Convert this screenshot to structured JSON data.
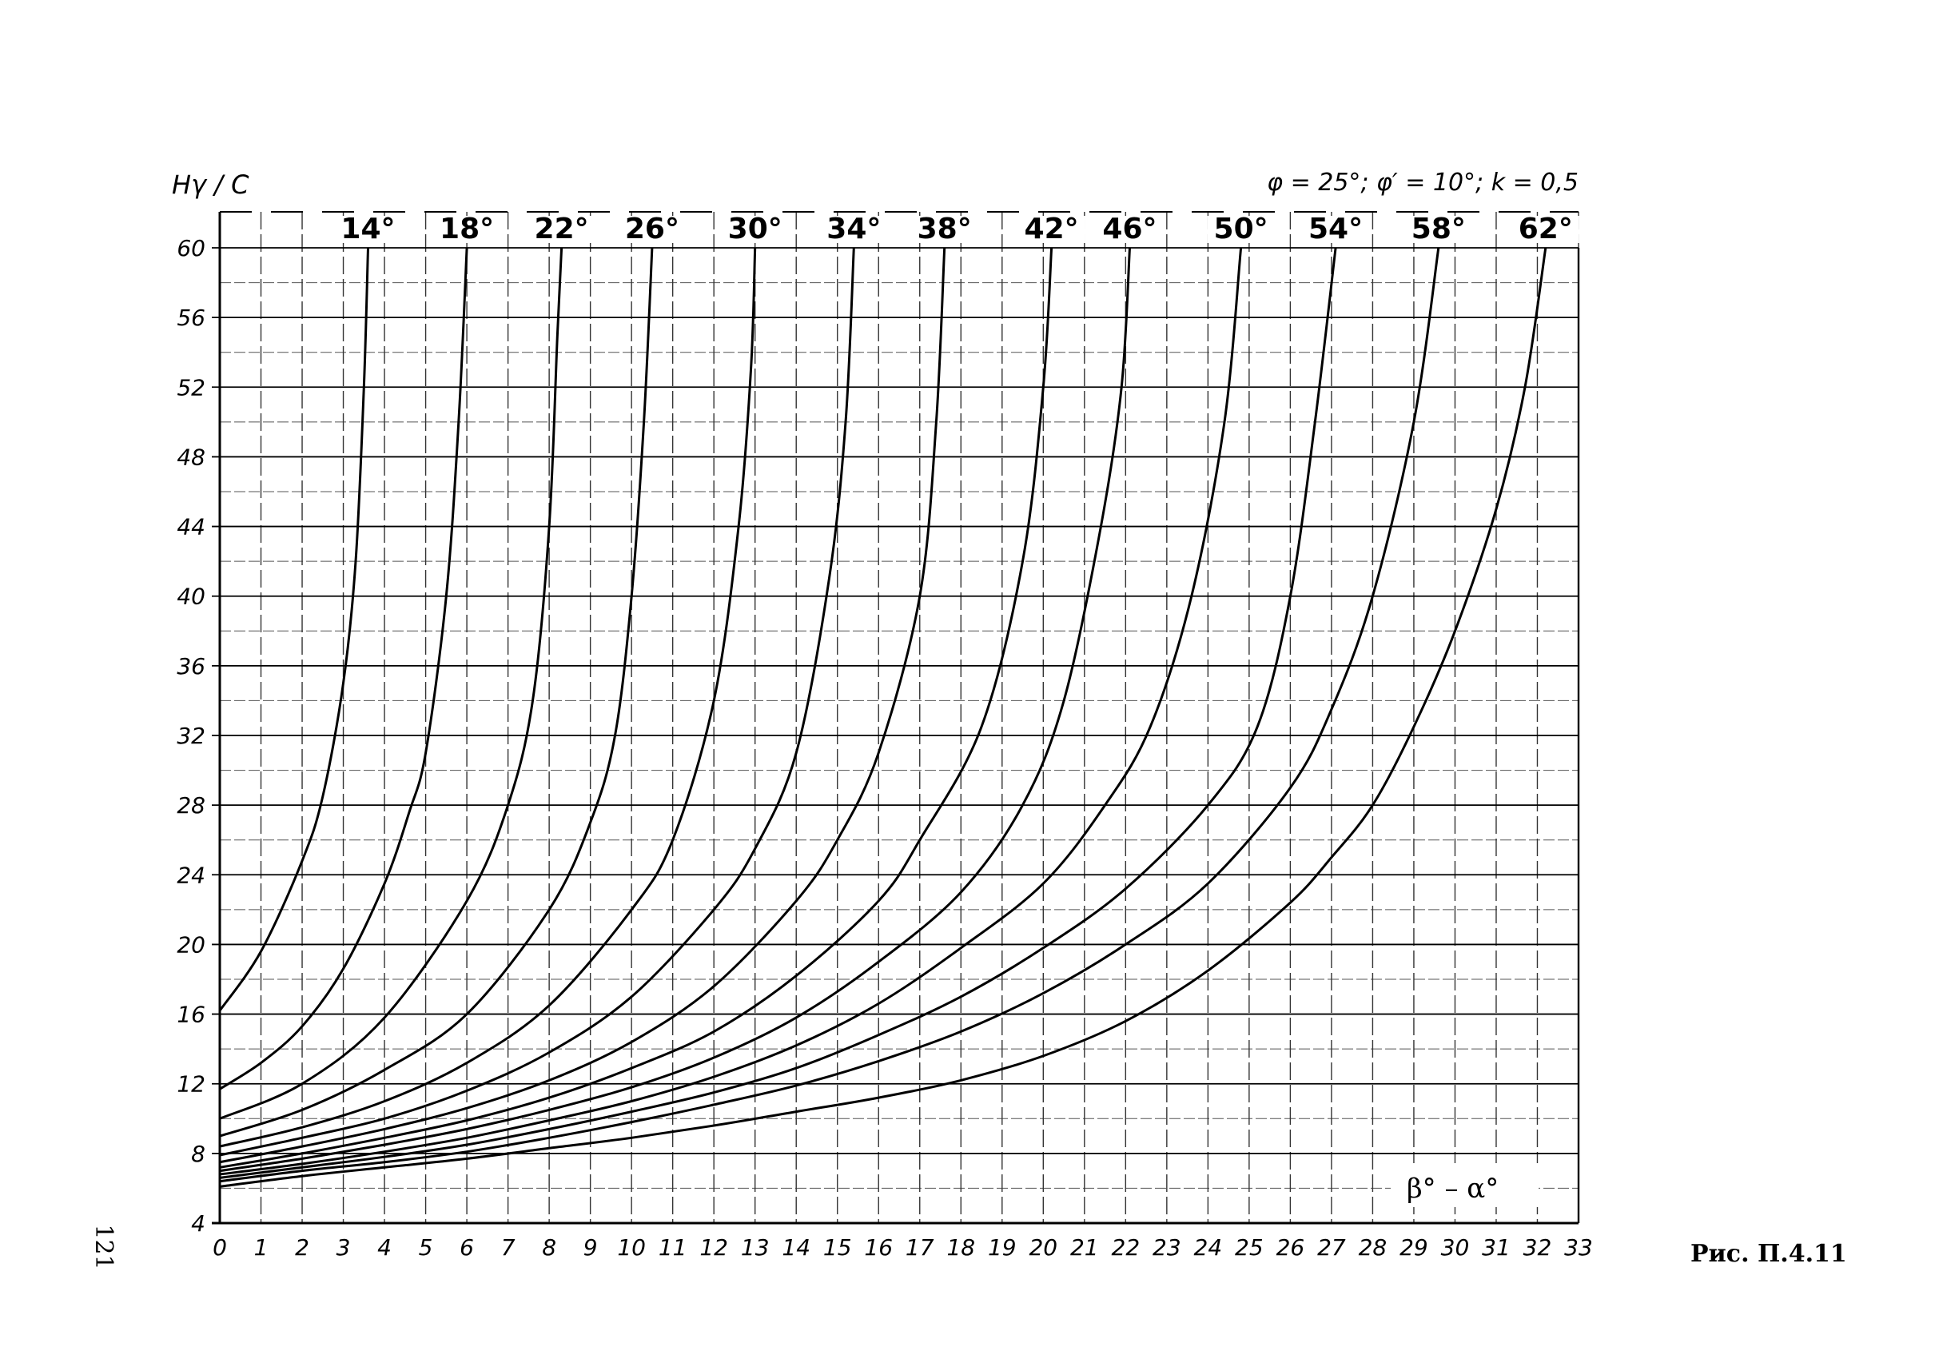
{
  "page_number": "121",
  "figure_caption": "Рис. П.4.11",
  "chart_data": {
    "type": "line",
    "title": "",
    "ylabel": "Hγ / C",
    "xlabel": "β° – α°",
    "parameters": "φ = 25°; φ′ = 10°; k = 0,5",
    "xlim": [
      0,
      33
    ],
    "ylim": [
      4,
      60
    ],
    "x_ticks": [
      0,
      1,
      2,
      3,
      4,
      5,
      6,
      7,
      8,
      9,
      10,
      11,
      12,
      13,
      14,
      15,
      16,
      17,
      18,
      19,
      20,
      21,
      22,
      23,
      24,
      25,
      26,
      27,
      28,
      29,
      30,
      31,
      32,
      33
    ],
    "y_ticks": [
      4,
      8,
      12,
      16,
      20,
      24,
      28,
      32,
      36,
      40,
      44,
      48,
      52,
      56,
      60
    ],
    "grid": true,
    "series": [
      {
        "name": "14°",
        "points": [
          [
            0,
            16.2
          ],
          [
            1,
            19.6
          ],
          [
            2,
            24.8
          ],
          [
            2.5,
            28.5
          ],
          [
            3,
            35
          ],
          [
            3.3,
            42
          ],
          [
            3.5,
            52
          ],
          [
            3.6,
            60
          ]
        ]
      },
      {
        "name": "18°",
        "points": [
          [
            0,
            11.7
          ],
          [
            1,
            13.2
          ],
          [
            2,
            15.3
          ],
          [
            3,
            18.6
          ],
          [
            4,
            23.5
          ],
          [
            4.6,
            27.6
          ],
          [
            5,
            31
          ],
          [
            5.5,
            40
          ],
          [
            5.8,
            50
          ],
          [
            6,
            60
          ]
        ]
      },
      {
        "name": "22°",
        "points": [
          [
            0,
            10
          ],
          [
            2,
            12
          ],
          [
            4,
            15.8
          ],
          [
            6,
            22.5
          ],
          [
            7,
            28
          ],
          [
            7.6,
            34
          ],
          [
            8,
            44
          ],
          [
            8.2,
            55
          ],
          [
            8.3,
            60
          ]
        ]
      },
      {
        "name": "26°",
        "points": [
          [
            0,
            9
          ],
          [
            2,
            10.5
          ],
          [
            4,
            12.8
          ],
          [
            6,
            16
          ],
          [
            8,
            22
          ],
          [
            9,
            27
          ],
          [
            9.6,
            32
          ],
          [
            10,
            40
          ],
          [
            10.3,
            50
          ],
          [
            10.5,
            60
          ]
        ]
      },
      {
        "name": "30°",
        "points": [
          [
            0,
            8.4
          ],
          [
            2,
            9.5
          ],
          [
            4,
            11
          ],
          [
            6,
            13.2
          ],
          [
            8,
            16.5
          ],
          [
            10,
            22
          ],
          [
            11,
            26
          ],
          [
            12,
            34
          ],
          [
            12.6,
            44
          ],
          [
            12.9,
            53
          ],
          [
            13,
            60
          ]
        ]
      },
      {
        "name": "34°",
        "points": [
          [
            0,
            7.9
          ],
          [
            2,
            8.9
          ],
          [
            4,
            10
          ],
          [
            6,
            11.6
          ],
          [
            8,
            13.8
          ],
          [
            10,
            17
          ],
          [
            12,
            22
          ],
          [
            13,
            25.5
          ],
          [
            14,
            31
          ],
          [
            14.8,
            41
          ],
          [
            15.2,
            50
          ],
          [
            15.4,
            60
          ]
        ]
      },
      {
        "name": "38°",
        "points": [
          [
            0,
            7.5
          ],
          [
            2,
            8.4
          ],
          [
            4,
            9.4
          ],
          [
            6,
            10.6
          ],
          [
            8,
            12.2
          ],
          [
            10,
            14.4
          ],
          [
            12,
            17.6
          ],
          [
            14,
            22.5
          ],
          [
            15,
            26
          ],
          [
            16,
            31
          ],
          [
            17,
            40
          ],
          [
            17.4,
            50
          ],
          [
            17.6,
            60
          ]
        ]
      },
      {
        "name": "42°",
        "points": [
          [
            0,
            7.2
          ],
          [
            2,
            8
          ],
          [
            4,
            8.9
          ],
          [
            6,
            9.9
          ],
          [
            8,
            11.2
          ],
          [
            10,
            12.9
          ],
          [
            12,
            15
          ],
          [
            14,
            18.2
          ],
          [
            16,
            22.5
          ],
          [
            17,
            26
          ],
          [
            18.5,
            32.5
          ],
          [
            19.5,
            42
          ],
          [
            20,
            52
          ],
          [
            20.2,
            60
          ]
        ]
      },
      {
        "name": "46°",
        "points": [
          [
            0,
            7
          ],
          [
            2,
            7.7
          ],
          [
            4,
            8.5
          ],
          [
            6,
            9.4
          ],
          [
            8,
            10.5
          ],
          [
            10,
            11.8
          ],
          [
            12,
            13.5
          ],
          [
            14,
            15.8
          ],
          [
            16,
            19
          ],
          [
            18,
            23
          ],
          [
            19.5,
            28
          ],
          [
            20.5,
            34
          ],
          [
            21.4,
            44
          ],
          [
            21.9,
            52
          ],
          [
            22.1,
            60
          ]
        ]
      },
      {
        "name": "50°",
        "points": [
          [
            0,
            6.8
          ],
          [
            2,
            7.4
          ],
          [
            4,
            8.1
          ],
          [
            6,
            8.9
          ],
          [
            8,
            9.9
          ],
          [
            10,
            11
          ],
          [
            12,
            12.4
          ],
          [
            14,
            14.2
          ],
          [
            16,
            16.6
          ],
          [
            18,
            19.8
          ],
          [
            20,
            23.5
          ],
          [
            21.5,
            28
          ],
          [
            22.6,
            32.5
          ],
          [
            23.6,
            40
          ],
          [
            24.4,
            50
          ],
          [
            24.8,
            60
          ]
        ]
      },
      {
        "name": "54°",
        "points": [
          [
            0,
            6.6
          ],
          [
            2,
            7.2
          ],
          [
            4,
            7.8
          ],
          [
            6,
            8.5
          ],
          [
            8,
            9.4
          ],
          [
            10,
            10.4
          ],
          [
            12,
            11.5
          ],
          [
            14,
            12.9
          ],
          [
            16,
            14.8
          ],
          [
            18,
            17
          ],
          [
            20,
            19.8
          ],
          [
            22,
            23.2
          ],
          [
            24,
            28
          ],
          [
            25.2,
            32.5
          ],
          [
            26,
            40
          ],
          [
            26.6,
            50
          ],
          [
            27.1,
            60
          ]
        ]
      },
      {
        "name": "58°",
        "points": [
          [
            0,
            6.4
          ],
          [
            2,
            7
          ],
          [
            4,
            7.5
          ],
          [
            6,
            8.1
          ],
          [
            8,
            8.9
          ],
          [
            10,
            9.8
          ],
          [
            12,
            10.8
          ],
          [
            14,
            11.9
          ],
          [
            16,
            13.3
          ],
          [
            18,
            15
          ],
          [
            20,
            17.2
          ],
          [
            22,
            20
          ],
          [
            24,
            23.5
          ],
          [
            26,
            29
          ],
          [
            27,
            33.5
          ],
          [
            28,
            40
          ],
          [
            29,
            50
          ],
          [
            29.6,
            60
          ]
        ]
      },
      {
        "name": "62°",
        "points": [
          [
            0,
            6.1
          ],
          [
            2,
            6.7
          ],
          [
            4,
            7.2
          ],
          [
            6,
            7.7
          ],
          [
            8,
            8.3
          ],
          [
            10,
            8.9
          ],
          [
            12,
            9.6
          ],
          [
            14,
            10.4
          ],
          [
            16,
            11.2
          ],
          [
            18,
            12.2
          ],
          [
            20,
            13.6
          ],
          [
            22,
            15.6
          ],
          [
            24,
            18.5
          ],
          [
            26,
            22.4
          ],
          [
            27,
            25
          ],
          [
            28,
            28
          ],
          [
            29,
            32.5
          ],
          [
            30,
            38
          ],
          [
            31,
            45
          ],
          [
            31.7,
            52
          ],
          [
            32.2,
            60
          ]
        ]
      }
    ]
  }
}
